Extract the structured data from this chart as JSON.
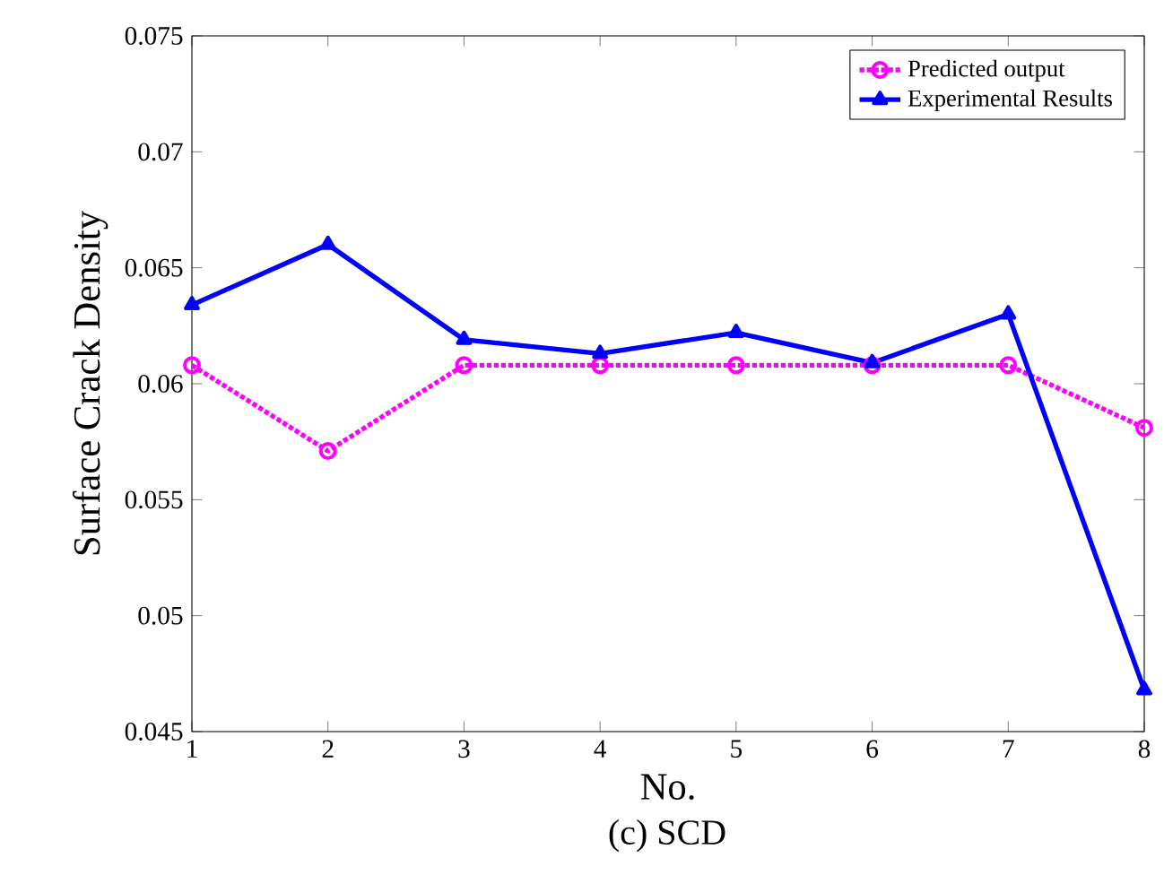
{
  "chart_data": {
    "type": "line",
    "xlabel": "No.",
    "ylabel": "Surface Crack Density",
    "x": [
      1,
      2,
      3,
      4,
      5,
      6,
      7,
      8
    ],
    "xlim": [
      1,
      8
    ],
    "xticks": [
      1,
      2,
      3,
      4,
      5,
      6,
      7,
      8
    ],
    "ylim": [
      0.045,
      0.075
    ],
    "yticks": [
      0.045,
      0.05,
      0.055,
      0.06,
      0.065,
      0.07,
      0.075
    ],
    "legend": "top right",
    "grid": false,
    "series": [
      {
        "name": "Predicted output",
        "color": "#ff00ff",
        "marker": "circle",
        "line_style": "dotted",
        "values": [
          0.0608,
          0.0571,
          0.0608,
          0.0608,
          0.0608,
          0.0608,
          0.0608,
          0.0581
        ]
      },
      {
        "name": "Experimental Results",
        "color": "#0000ff",
        "marker": "triangle",
        "line_style": "solid",
        "values": [
          0.0634,
          0.066,
          0.0619,
          0.0613,
          0.0622,
          0.0609,
          0.063,
          0.0468
        ]
      }
    ],
    "annotations": [
      "(c) SCD"
    ]
  }
}
